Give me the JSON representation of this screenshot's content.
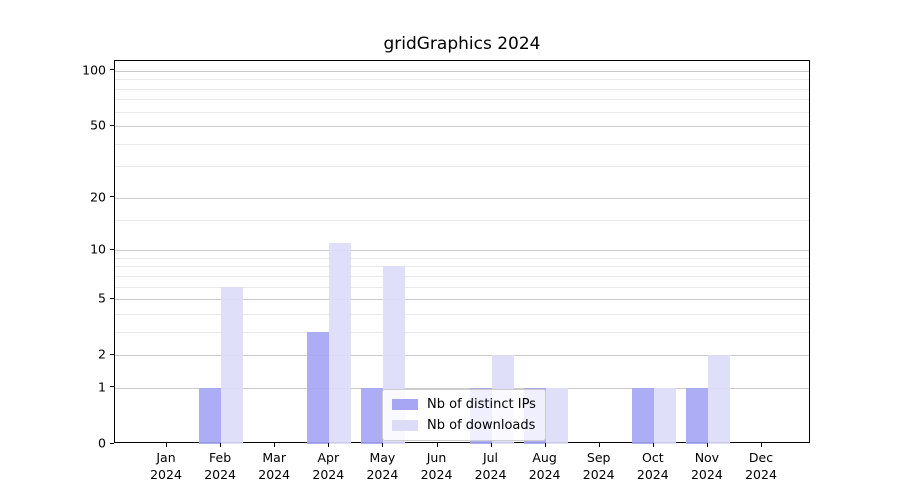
{
  "title": "gridGraphics 2024",
  "chart_data": {
    "type": "bar",
    "title": "gridGraphics 2024",
    "categories": [
      "Jan",
      "Feb",
      "Mar",
      "Apr",
      "May",
      "Jun",
      "Jul",
      "Aug",
      "Sep",
      "Oct",
      "Nov",
      "Dec"
    ],
    "category_year": "2024",
    "series": [
      {
        "name": "Nb of distinct IPs",
        "color": "#a6a6f5",
        "values": [
          0,
          1,
          0,
          3,
          1,
          0,
          1,
          1,
          0,
          1,
          1,
          0
        ]
      },
      {
        "name": "Nb of downloads",
        "color": "#dcdcf9",
        "values": [
          0,
          6,
          0,
          11,
          8,
          0,
          2,
          1,
          0,
          1,
          2,
          0
        ]
      }
    ],
    "xlabel": "",
    "ylabel": "",
    "yscale": "log1p",
    "ylim": [
      0,
      113
    ],
    "y_ticks": [
      0,
      1,
      2,
      5,
      10,
      20,
      50,
      100
    ],
    "y_minor_ticks": [
      3,
      4,
      6,
      7,
      8,
      9,
      15,
      30,
      40,
      60,
      70,
      80,
      90
    ],
    "grid": "horizontal-major-and-minor",
    "legend_position": "lower center"
  },
  "colors": {
    "grid_major": "#cbcbcb",
    "grid_minor": "#e9e9e9",
    "spine": "#000000",
    "background": "#ffffff"
  }
}
